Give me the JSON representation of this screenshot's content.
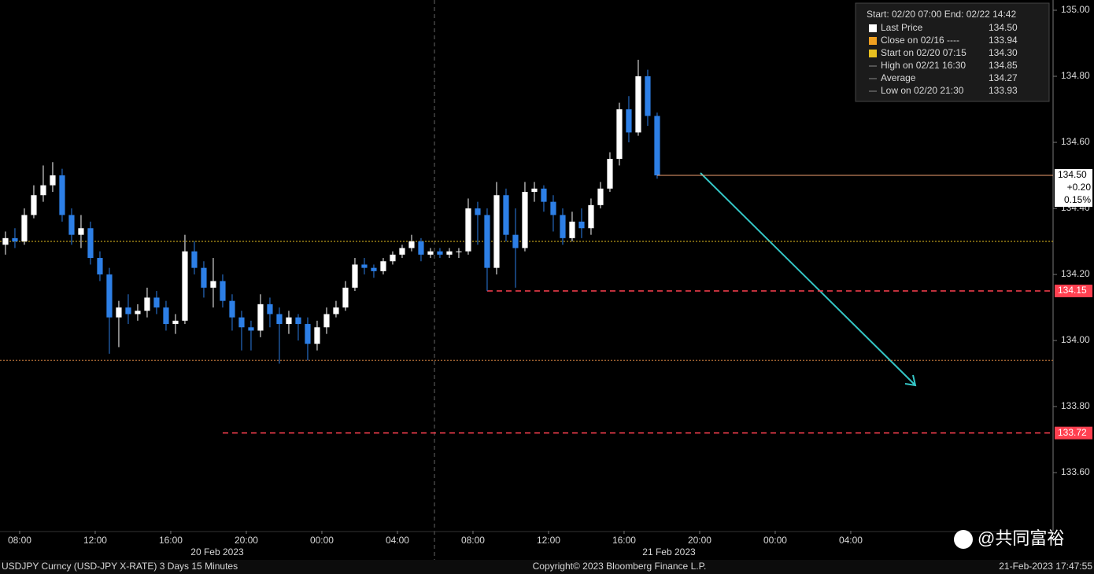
{
  "chart_data": {
    "type": "candlestick",
    "x": [
      7,
      7.5,
      8,
      8.5,
      9,
      9.5,
      10,
      10.5,
      11,
      11.5,
      12,
      12.5,
      13,
      13.5,
      14,
      14.5,
      15,
      15.5,
      16,
      16.5,
      17,
      17.5,
      18,
      18.5,
      19,
      19.5,
      20,
      20.5,
      21,
      21.5,
      22,
      22.5,
      23,
      23.5,
      24,
      24.5,
      25,
      25.5,
      26,
      26.5,
      27,
      27.5,
      28,
      28.5,
      29,
      29.5,
      30,
      30.5,
      31,
      31.5,
      32,
      32.5,
      33,
      33.5,
      34,
      34.5,
      35,
      35.5,
      36,
      36.5,
      37,
      37.5,
      38,
      38.5,
      39,
      39.5,
      40,
      40.5,
      41,
      41.5
    ],
    "open": [
      134.29,
      134.31,
      134.3,
      134.38,
      134.44,
      134.47,
      134.5,
      134.38,
      134.32,
      134.34,
      134.25,
      134.2,
      134.07,
      134.1,
      134.08,
      134.09,
      134.13,
      134.1,
      134.05,
      134.06,
      134.27,
      134.22,
      134.16,
      134.18,
      134.12,
      134.07,
      134.04,
      134.03,
      134.11,
      134.08,
      134.05,
      134.07,
      134.05,
      133.99,
      134.04,
      134.08,
      134.1,
      134.16,
      134.23,
      134.22,
      134.21,
      134.24,
      134.26,
      134.28,
      134.3,
      134.26,
      134.27,
      134.26,
      134.27,
      134.27,
      134.4,
      134.38,
      134.22,
      134.44,
      134.32,
      134.28,
      134.45,
      134.46,
      134.42,
      134.38,
      134.31,
      134.36,
      134.34,
      134.41,
      134.46,
      134.55,
      134.7,
      134.63,
      134.8,
      134.68
    ],
    "high": [
      134.33,
      134.34,
      134.4,
      134.47,
      134.53,
      134.54,
      134.52,
      134.4,
      134.38,
      134.36,
      134.27,
      134.22,
      134.12,
      134.14,
      134.11,
      134.16,
      134.15,
      134.12,
      134.08,
      134.32,
      134.3,
      134.24,
      134.25,
      134.2,
      134.14,
      134.09,
      134.06,
      134.14,
      134.13,
      134.1,
      134.09,
      134.08,
      134.07,
      134.06,
      134.1,
      134.12,
      134.18,
      134.25,
      134.25,
      134.23,
      134.25,
      134.27,
      134.29,
      134.32,
      134.31,
      134.28,
      134.28,
      134.28,
      134.28,
      134.43,
      134.42,
      134.4,
      134.48,
      134.46,
      134.4,
      134.48,
      134.48,
      134.47,
      134.44,
      134.4,
      134.39,
      134.4,
      134.43,
      134.48,
      134.57,
      134.72,
      134.74,
      134.85,
      134.82,
      134.69
    ],
    "low": [
      134.26,
      134.28,
      134.29,
      134.37,
      134.42,
      134.45,
      134.36,
      134.29,
      134.28,
      134.23,
      134.18,
      133.96,
      133.98,
      134.05,
      134.06,
      134.07,
      134.08,
      134.03,
      134.02,
      134.05,
      134.2,
      134.13,
      134.1,
      134.1,
      134.03,
      133.97,
      133.97,
      134.01,
      134.04,
      133.93,
      134.02,
      134.0,
      133.94,
      133.97,
      134.02,
      134.07,
      134.09,
      134.15,
      134.2,
      134.19,
      134.2,
      134.23,
      134.25,
      134.27,
      134.24,
      134.25,
      134.25,
      134.25,
      134.25,
      134.26,
      134.29,
      134.15,
      134.2,
      134.3,
      134.16,
      134.27,
      134.42,
      134.39,
      134.33,
      134.29,
      134.3,
      134.31,
      134.32,
      134.4,
      134.45,
      134.53,
      134.6,
      134.62,
      134.65,
      134.49
    ],
    "close": [
      134.31,
      134.3,
      134.38,
      134.44,
      134.47,
      134.5,
      134.38,
      134.32,
      134.34,
      134.25,
      134.2,
      134.07,
      134.1,
      134.08,
      134.09,
      134.13,
      134.1,
      134.05,
      134.06,
      134.27,
      134.22,
      134.16,
      134.18,
      134.12,
      134.07,
      134.04,
      134.03,
      134.11,
      134.08,
      134.05,
      134.07,
      134.05,
      133.99,
      134.04,
      134.08,
      134.1,
      134.16,
      134.23,
      134.22,
      134.21,
      134.24,
      134.26,
      134.28,
      134.3,
      134.26,
      134.27,
      134.26,
      134.27,
      134.27,
      134.4,
      134.38,
      134.22,
      134.44,
      134.32,
      134.28,
      134.45,
      134.46,
      134.42,
      134.38,
      134.31,
      134.36,
      134.34,
      134.41,
      134.46,
      134.55,
      134.7,
      134.63,
      134.8,
      134.68,
      134.5
    ],
    "up_color": "#ffffff",
    "down_color": "#2d7fe6",
    "xlim": [
      6.96,
      62.71
    ],
    "xticks": [
      {
        "value": 8,
        "label": "08:00"
      },
      {
        "value": 12,
        "label": "12:00"
      },
      {
        "value": 16,
        "label": "16:00"
      },
      {
        "value": 20,
        "label": "20:00"
      },
      {
        "value": 24,
        "label": "00:00"
      },
      {
        "value": 28,
        "label": "04:00"
      },
      {
        "value": 32,
        "label": "08:00"
      },
      {
        "value": 36,
        "label": "12:00"
      },
      {
        "value": 40,
        "label": "16:00"
      },
      {
        "value": 44,
        "label": "20:00"
      },
      {
        "value": 48,
        "label": "00:00"
      },
      {
        "value": 52,
        "label": "04:00"
      }
    ],
    "date_labels": [
      "20 Feb 2023",
      "21 Feb 2023"
    ],
    "ylim": [
      133.424,
      135.031
    ],
    "yticks": [
      {
        "value": 133.6,
        "label": "133.60"
      },
      {
        "value": 133.8,
        "label": "133.80"
      },
      {
        "value": 134,
        "label": "134.00"
      },
      {
        "value": 134.2,
        "label": "134.20"
      },
      {
        "value": 134.4,
        "label": "134.40"
      },
      {
        "value": 134.6,
        "label": "134.60"
      },
      {
        "value": 134.8,
        "label": "134.80"
      },
      {
        "value": 135,
        "label": "135.00"
      }
    ],
    "reference_lines": [
      {
        "value": 134.3,
        "color": "#e8c020"
      },
      {
        "value": 133.94,
        "color": "#d08040"
      }
    ],
    "levels": [
      {
        "value": 134.15,
        "label": "134.15",
        "from": 32.75
      },
      {
        "value": 133.72,
        "label": "133.72",
        "from": 18.75
      }
    ],
    "level_color": "#ff4050",
    "last_price": {
      "value": 134.5,
      "label": "134.50",
      "change": 0.2,
      "change_label": "+0.20",
      "change_pct": 0.15,
      "change_pct_label": "0.15%",
      "color": "#f0a070"
    },
    "legend": {
      "header": "Start: 02/20 07:00 End: 02/22 14:42",
      "names": [
        "Last Price",
        "Close on 02/16 ----",
        "Start on 02/20 07:15",
        "High on 02/21 16:30",
        "Average",
        "Low on 02/20 21:30"
      ],
      "values": [
        134.5,
        133.94,
        134.3,
        134.85,
        134.27,
        133.93
      ],
      "value_labels": [
        "134.50",
        "133.94",
        "134.30",
        "134.85",
        "134.27",
        "133.93"
      ]
    },
    "footer": {
      "left": "USDJPY Curncy (USD-JPY X-RATE) 3 Days 15 Minutes",
      "center": "Copyright© 2023 Bloomberg Finance L.P.",
      "right": "21-Feb-2023 17:47:55"
    },
    "watermark": "@共同富裕"
  }
}
